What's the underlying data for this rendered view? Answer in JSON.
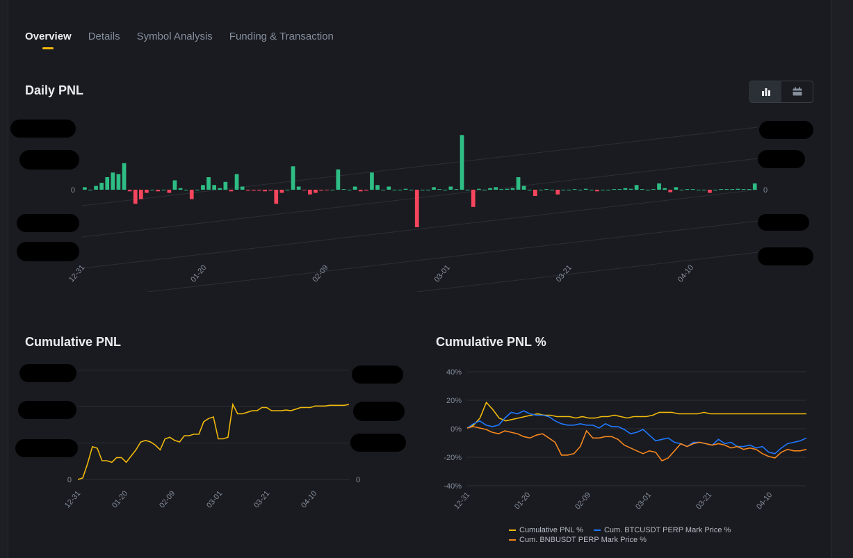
{
  "tabs": [
    {
      "label": "Overview",
      "active": true
    },
    {
      "label": "Details",
      "active": false
    },
    {
      "label": "Symbol Analysis",
      "active": false
    },
    {
      "label": "Funding & Transaction",
      "active": false
    }
  ],
  "daily": {
    "title": "Daily PNL",
    "toggle": {
      "options": [
        "bar-chart-icon",
        "calendar-icon"
      ],
      "active": "bar-chart-icon"
    }
  },
  "cumulative": {
    "title": "Cumulative PNL"
  },
  "cumulative_pct": {
    "title": "Cumulative PNL %"
  },
  "colors": {
    "profit": "#2ebd85",
    "loss": "#f6465d",
    "accent": "#f0b90b",
    "btc": "#1f78ff",
    "bnb": "#f7871e"
  },
  "chart_data": [
    {
      "type": "bar",
      "title": "Daily PNL",
      "x_ticks": [
        "12-31",
        "01-20",
        "02-09",
        "03-01",
        "03-21",
        "04-10"
      ],
      "zero_label_left": "0",
      "zero_label_right": "0",
      "y_ticks_redacted": true,
      "values": [
        0.08,
        0,
        0.12,
        0.22,
        0.4,
        0.55,
        0.5,
        0.85,
        -0.05,
        -0.45,
        -0.3,
        -0.1,
        0,
        -0.05,
        0,
        -0.1,
        0.3,
        0.05,
        0,
        -0.3,
        0,
        0.15,
        0.4,
        0.15,
        0.05,
        0.25,
        -0.05,
        0.5,
        0.1,
        -0.03,
        -0.03,
        -0.03,
        -0.05,
        -0.03,
        -0.45,
        -0.1,
        0,
        0.75,
        0.1,
        -0.02,
        -0.15,
        -0.1,
        -0.03,
        -0.02,
        0,
        0.65,
        0.02,
        0,
        0.1,
        -0.05,
        -0.03,
        0.55,
        0.15,
        0,
        0.1,
        0,
        0,
        0.03,
        0,
        -1.2,
        0,
        0,
        0.08,
        0.02,
        0,
        0.1,
        0.02,
        1.75,
        0,
        -0.55,
        0.03,
        0,
        0.05,
        0.08,
        0.02,
        0.03,
        0.05,
        0.4,
        0.12,
        0,
        -0.2,
        0,
        0.02,
        0,
        -0.15,
        0,
        0,
        0.02,
        0,
        0.03,
        0,
        -0.05,
        0,
        0,
        0.02,
        0.02,
        0.05,
        0.03,
        0.15,
        0.02,
        0,
        0.02,
        0.2,
        0.05,
        -0.08,
        0.08,
        0,
        0.02,
        0.02,
        0,
        0,
        -0.1,
        0,
        0.02,
        0.02,
        0.02,
        0.03,
        0.02,
        0.02,
        0.2
      ]
    },
    {
      "type": "line",
      "title": "Cumulative PNL",
      "x_ticks": [
        "12-31",
        "01-20",
        "02-09",
        "03-01",
        "03-21",
        "04-10"
      ],
      "zero_label_left": "0",
      "zero_label_right": "0",
      "y_ticks_redacted": true,
      "values": [
        0,
        0.05,
        0.5,
        1.05,
        1.0,
        0.6,
        0.6,
        0.55,
        0.7,
        0.7,
        0.55,
        0.75,
        0.95,
        1.2,
        1.25,
        1.2,
        1.1,
        0.95,
        1.3,
        1.35,
        1.25,
        1.2,
        1.4,
        1.4,
        1.45,
        1.45,
        1.85,
        1.95,
        2.0,
        1.3,
        1.3,
        1.35,
        2.4,
        2.1,
        2.1,
        2.15,
        2.2,
        2.2,
        2.3,
        2.3,
        2.2,
        2.2,
        2.2,
        2.22,
        2.2,
        2.25,
        2.3,
        2.3,
        2.3,
        2.35,
        2.35,
        2.35,
        2.37,
        2.37,
        2.37,
        2.37,
        2.4
      ]
    },
    {
      "type": "line",
      "title": "Cumulative PNL %",
      "x_ticks": [
        "12-31",
        "01-20",
        "02-09",
        "03-01",
        "03-21",
        "04-10"
      ],
      "y_ticks": [
        "40%",
        "20%",
        "0%",
        "-20%",
        "-40%"
      ],
      "ylim": [
        -40,
        40
      ],
      "series": [
        {
          "name": "Cumulative PNL %",
          "color": "#f0b90b",
          "values": [
            1,
            3,
            8,
            19,
            14,
            8,
            6,
            7,
            8,
            9,
            10,
            11,
            10,
            10,
            9,
            9,
            9,
            8,
            9,
            8,
            8,
            9,
            9,
            10,
            9,
            8,
            9,
            9,
            9,
            10,
            12,
            12,
            12,
            11,
            11,
            11,
            11,
            12,
            11,
            11,
            11,
            11,
            11,
            11,
            11,
            11,
            11,
            11,
            11,
            11,
            11,
            11,
            11,
            11
          ]
        },
        {
          "name": "Cum. BTCUSDT PERP Mark Price %",
          "color": "#1f78ff",
          "values": [
            1,
            4,
            6,
            3,
            2,
            3,
            8,
            12,
            11,
            13,
            11,
            10,
            10,
            9,
            6,
            4,
            3,
            3,
            4,
            3,
            3,
            1,
            4,
            2,
            2,
            0,
            -3,
            -2,
            0,
            -4,
            -8,
            -7,
            -6,
            -9,
            -10,
            -12,
            -9,
            -9,
            -10,
            -11,
            -7,
            -10,
            -9,
            -12,
            -12,
            -11,
            -13,
            -12,
            -16,
            -17,
            -13,
            -10,
            -9,
            -8,
            -6
          ]
        },
        {
          "name": "Cum. BNBUSDT PERP Mark Price %",
          "color": "#f7871e",
          "values": [
            1,
            2,
            1,
            0,
            -2,
            -3,
            -1,
            -2,
            -3,
            -5,
            -6,
            -4,
            -3,
            -6,
            -9,
            -18,
            -18,
            -17,
            -12,
            -1,
            -6,
            -6,
            -5,
            -5,
            -7,
            -11,
            -13,
            -15,
            -17,
            -15,
            -16,
            -22,
            -20,
            -15,
            -10,
            -12,
            -10,
            -9,
            -10,
            -11,
            -10,
            -11,
            -13,
            -12,
            -14,
            -13,
            -14,
            -17,
            -19,
            -20,
            -16,
            -14,
            -15,
            -15,
            -14
          ]
        }
      ]
    }
  ]
}
